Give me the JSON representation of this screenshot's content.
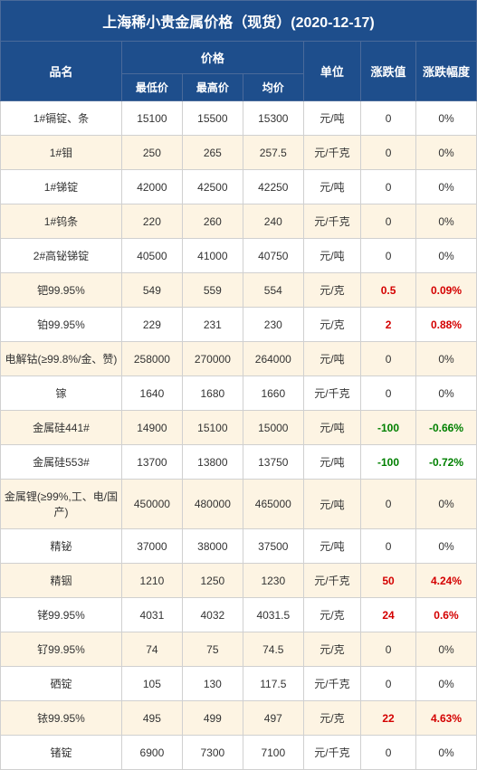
{
  "title": "上海稀小贵金属价格（现货）(2020-12-17)",
  "headers": {
    "name": "品名",
    "price": "价格",
    "low": "最低价",
    "high": "最高价",
    "avg": "均价",
    "unit": "单位",
    "change": "涨跌值",
    "pct": "涨跌幅度"
  },
  "colors": {
    "header_bg": "#1e4e8c",
    "header_text": "#ffffff",
    "odd_row_bg": "#fdf4e3",
    "even_row_bg": "#ffffff",
    "border": "#d0d0d0",
    "pos": "#d40000",
    "neg": "#008000",
    "text": "#333333"
  },
  "font_sizes": {
    "title": 16,
    "header": 13,
    "sub_header": 12,
    "body": 12
  },
  "rows": [
    {
      "name": "1#镉锭、条",
      "low": "15100",
      "high": "15500",
      "avg": "15300",
      "unit": "元/吨",
      "chg": "0",
      "pct": "0%",
      "dir": "z"
    },
    {
      "name": "1#钼",
      "low": "250",
      "high": "265",
      "avg": "257.5",
      "unit": "元/千克",
      "chg": "0",
      "pct": "0%",
      "dir": "z"
    },
    {
      "name": "1#锑锭",
      "low": "42000",
      "high": "42500",
      "avg": "42250",
      "unit": "元/吨",
      "chg": "0",
      "pct": "0%",
      "dir": "z"
    },
    {
      "name": "1#钨条",
      "low": "220",
      "high": "260",
      "avg": "240",
      "unit": "元/千克",
      "chg": "0",
      "pct": "0%",
      "dir": "z"
    },
    {
      "name": "2#高铋锑锭",
      "low": "40500",
      "high": "41000",
      "avg": "40750",
      "unit": "元/吨",
      "chg": "0",
      "pct": "0%",
      "dir": "z"
    },
    {
      "name": "钯99.95%",
      "low": "549",
      "high": "559",
      "avg": "554",
      "unit": "元/克",
      "chg": "0.5",
      "pct": "0.09%",
      "dir": "p"
    },
    {
      "name": "铂99.95%",
      "low": "229",
      "high": "231",
      "avg": "230",
      "unit": "元/克",
      "chg": "2",
      "pct": "0.88%",
      "dir": "p"
    },
    {
      "name": "电解钴(≥99.8%/金、赞)",
      "low": "258000",
      "high": "270000",
      "avg": "264000",
      "unit": "元/吨",
      "chg": "0",
      "pct": "0%",
      "dir": "z"
    },
    {
      "name": "镓",
      "low": "1640",
      "high": "1680",
      "avg": "1660",
      "unit": "元/千克",
      "chg": "0",
      "pct": "0%",
      "dir": "z"
    },
    {
      "name": "金属硅441#",
      "low": "14900",
      "high": "15100",
      "avg": "15000",
      "unit": "元/吨",
      "chg": "-100",
      "pct": "-0.66%",
      "dir": "n"
    },
    {
      "name": "金属硅553#",
      "low": "13700",
      "high": "13800",
      "avg": "13750",
      "unit": "元/吨",
      "chg": "-100",
      "pct": "-0.72%",
      "dir": "n"
    },
    {
      "name": "金属锂(≥99%,工、电/国产)",
      "low": "450000",
      "high": "480000",
      "avg": "465000",
      "unit": "元/吨",
      "chg": "0",
      "pct": "0%",
      "dir": "z"
    },
    {
      "name": "精铋",
      "low": "37000",
      "high": "38000",
      "avg": "37500",
      "unit": "元/吨",
      "chg": "0",
      "pct": "0%",
      "dir": "z"
    },
    {
      "name": "精铟",
      "low": "1210",
      "high": "1250",
      "avg": "1230",
      "unit": "元/千克",
      "chg": "50",
      "pct": "4.24%",
      "dir": "p"
    },
    {
      "name": "铑99.95%",
      "low": "4031",
      "high": "4032",
      "avg": "4031.5",
      "unit": "元/克",
      "chg": "24",
      "pct": "0.6%",
      "dir": "p"
    },
    {
      "name": "钌99.95%",
      "low": "74",
      "high": "75",
      "avg": "74.5",
      "unit": "元/克",
      "chg": "0",
      "pct": "0%",
      "dir": "z"
    },
    {
      "name": "硒锭",
      "low": "105",
      "high": "130",
      "avg": "117.5",
      "unit": "元/千克",
      "chg": "0",
      "pct": "0%",
      "dir": "z"
    },
    {
      "name": "铱99.95%",
      "low": "495",
      "high": "499",
      "avg": "497",
      "unit": "元/克",
      "chg": "22",
      "pct": "4.63%",
      "dir": "p"
    },
    {
      "name": "锗锭",
      "low": "6900",
      "high": "7300",
      "avg": "7100",
      "unit": "元/千克",
      "chg": "0",
      "pct": "0%",
      "dir": "z"
    }
  ]
}
